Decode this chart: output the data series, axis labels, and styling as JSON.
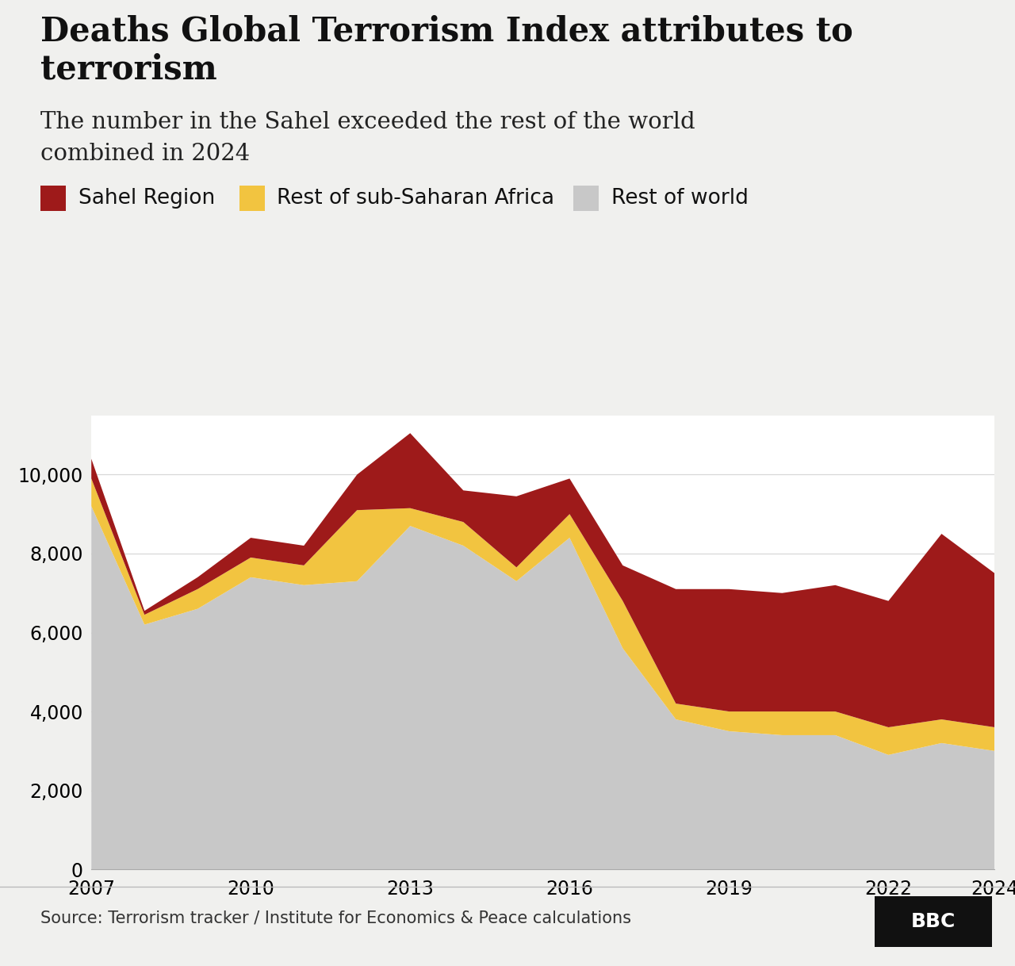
{
  "title_line1": "Deaths Global Terrorism Index attributes to",
  "title_line2": "terrorism",
  "subtitle_line1": "The number in the Sahel exceeded the rest of the world",
  "subtitle_line2": "combined in 2024",
  "source": "Source: Terrorism tracker / Institute for Economics & Peace calculations",
  "years": [
    2007,
    2008,
    2009,
    2010,
    2011,
    2012,
    2013,
    2014,
    2015,
    2016,
    2017,
    2018,
    2019,
    2020,
    2021,
    2022,
    2023,
    2024
  ],
  "rest_of_world": [
    9200,
    6200,
    6600,
    7400,
    7200,
    7300,
    8700,
    8200,
    7300,
    8400,
    5600,
    3800,
    3500,
    3400,
    3400,
    2900,
    3200,
    3000
  ],
  "rest_of_sub_saharan": [
    700,
    250,
    500,
    500,
    500,
    1800,
    450,
    600,
    350,
    600,
    1200,
    400,
    500,
    600,
    600,
    700,
    600,
    600
  ],
  "sahel_region": [
    500,
    100,
    300,
    500,
    500,
    900,
    1900,
    800,
    1800,
    900,
    900,
    2900,
    3100,
    3000,
    3200,
    3200,
    4700,
    3900
  ],
  "colors": {
    "rest_of_world": "#c8c8c8",
    "rest_of_sub_saharan": "#f2c440",
    "sahel_region": "#9e1a1a"
  },
  "legend_labels": [
    "Sahel Region",
    "Rest of sub-Saharan Africa",
    "Rest of world"
  ],
  "ylim": [
    0,
    11500
  ],
  "yticks": [
    0,
    2000,
    4000,
    6000,
    8000,
    10000
  ],
  "xticks": [
    2007,
    2010,
    2013,
    2016,
    2019,
    2022,
    2024
  ],
  "background_color": "#f0f0ee",
  "plot_background": "#ffffff",
  "title_fontsize": 30,
  "subtitle_fontsize": 21,
  "tick_fontsize": 17,
  "legend_fontsize": 19,
  "source_fontsize": 15
}
